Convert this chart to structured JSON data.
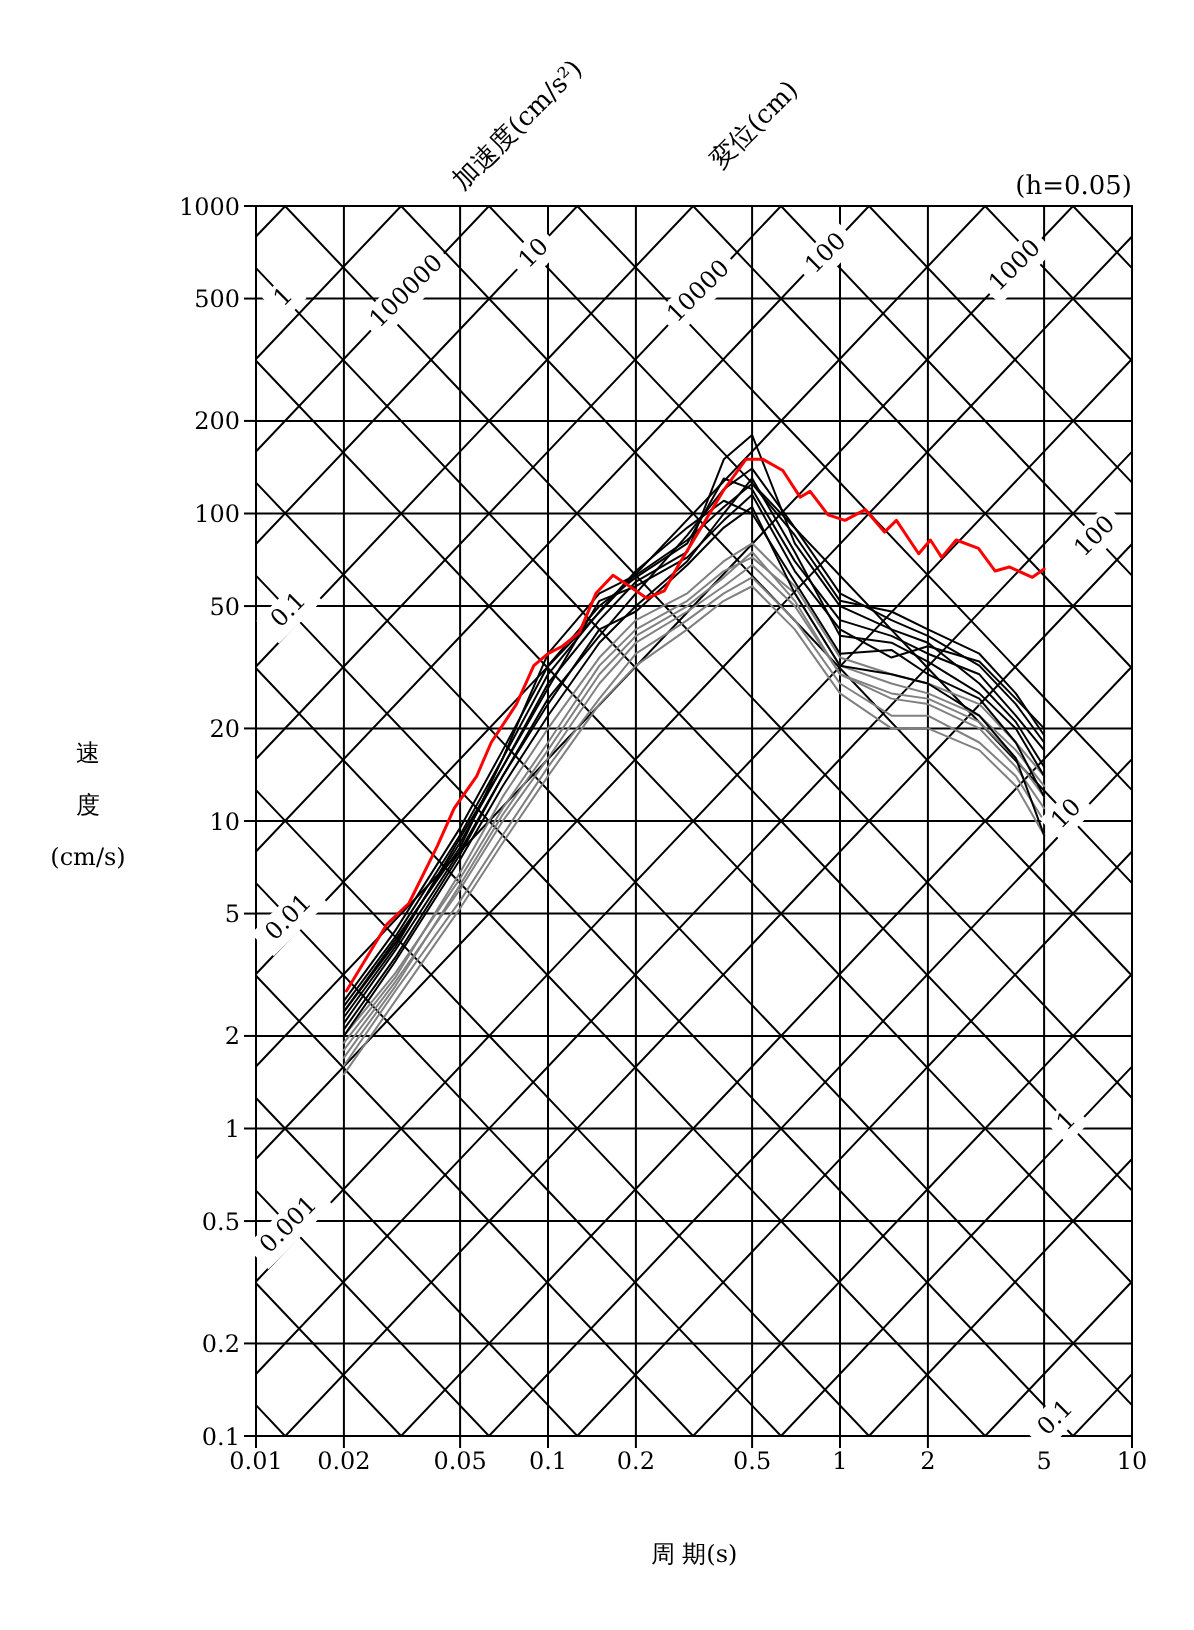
{
  "chart_data": {
    "type": "line",
    "subtitle": "(h=0.05)",
    "xlabel": "周 期(s)",
    "ylabel": "速度(cm/s)",
    "log": "xy",
    "grid": true,
    "marker": "none",
    "line_style": "solid",
    "xlim": [
      0.01,
      10
    ],
    "ylim": [
      0.1,
      1000
    ],
    "xticks": [
      0.01,
      0.02,
      0.05,
      0.1,
      0.2,
      0.5,
      1,
      2,
      5,
      10
    ],
    "yticks": [
      0.1,
      0.2,
      0.5,
      1,
      2,
      5,
      10,
      20,
      50,
      100,
      200,
      500,
      1000
    ],
    "annotations": [
      "加速度(cm/s²)",
      "変位(cm)",
      {
        "text": "1",
        "x": 0.0125,
        "y": 503
      },
      {
        "text": "100000",
        "x": 0.033,
        "y": 525
      },
      {
        "text": "10",
        "x": 0.09,
        "y": 698
      },
      {
        "text": "10000",
        "x": 0.33,
        "y": 525
      },
      {
        "text": "100",
        "x": 0.9,
        "y": 698
      },
      {
        "text": "1000",
        "x": 4,
        "y": 637
      },
      {
        "text": "100",
        "x": 7.5,
        "y": 83.8
      },
      {
        "text": "10",
        "x": 6,
        "y": 10.5
      },
      {
        "text": "1",
        "x": 6,
        "y": 1.05
      },
      {
        "text": "0.1",
        "x": 5.5,
        "y": 0.114
      },
      {
        "text": "0.1",
        "x": 0.013,
        "y": 48.3
      },
      {
        "text": "0.01",
        "x": 0.013,
        "y": 4.83
      },
      {
        "text": "0.001",
        "x": 0.013,
        "y": 0.483
      }
    ],
    "series": [
      {
        "type": "line",
        "color": "#000000",
        "x": [
          6.283,
          10
        ],
        "values": [
          0.1,
          0.159
        ]
      },
      {
        "type": "line",
        "color": "#000000",
        "x": [
          3.142,
          10
        ],
        "values": [
          0.1,
          0.318
        ]
      },
      {
        "type": "line",
        "color": "#000000",
        "x": [
          1.257,
          10
        ],
        "values": [
          0.1,
          0.796
        ]
      },
      {
        "type": "line",
        "color": "#000000",
        "x": [
          0.628,
          10
        ],
        "values": [
          0.1,
          1.59
        ]
      },
      {
        "type": "line",
        "color": "#000000",
        "x": [
          0.314,
          10
        ],
        "values": [
          0.1,
          3.18
        ]
      },
      {
        "type": "line",
        "color": "#000000",
        "x": [
          0.126,
          10
        ],
        "values": [
          0.1,
          7.96
        ]
      },
      {
        "type": "line",
        "color": "#000000",
        "x": [
          0.0628,
          10
        ],
        "values": [
          0.1,
          15.9
        ]
      },
      {
        "type": "line",
        "color": "#000000",
        "x": [
          0.0314,
          10
        ],
        "values": [
          0.1,
          31.8
        ]
      },
      {
        "type": "line",
        "color": "#000000",
        "x": [
          0.0126,
          10
        ],
        "values": [
          0.1,
          79.6
        ]
      },
      {
        "type": "line",
        "color": "#000000",
        "x": [
          0.01,
          10
        ],
        "values": [
          0.159,
          159
        ]
      },
      {
        "type": "line",
        "color": "#000000",
        "x": [
          0.01,
          10
        ],
        "values": [
          0.318,
          318
        ]
      },
      {
        "type": "line",
        "color": "#000000",
        "x": [
          0.01,
          10
        ],
        "values": [
          0.796,
          796
        ]
      },
      {
        "type": "line",
        "color": "#000000",
        "x": [
          0.01,
          6.283
        ],
        "values": [
          1.59,
          1000
        ]
      },
      {
        "type": "line",
        "color": "#000000",
        "x": [
          0.01,
          3.142
        ],
        "values": [
          3.18,
          1000
        ]
      },
      {
        "type": "line",
        "color": "#000000",
        "x": [
          0.01,
          1.257
        ],
        "values": [
          7.96,
          1000
        ]
      },
      {
        "type": "line",
        "color": "#000000",
        "x": [
          0.01,
          0.628
        ],
        "values": [
          15.9,
          1000
        ]
      },
      {
        "type": "line",
        "color": "#000000",
        "x": [
          0.01,
          0.314
        ],
        "values": [
          31.8,
          1000
        ]
      },
      {
        "type": "line",
        "color": "#000000",
        "x": [
          0.01,
          0.126
        ],
        "values": [
          79.6,
          1000
        ]
      },
      {
        "type": "line",
        "color": "#000000",
        "x": [
          0.01,
          0.0628
        ],
        "values": [
          159,
          1000
        ]
      },
      {
        "type": "line",
        "color": "#000000",
        "x": [
          0.01,
          0.0314
        ],
        "values": [
          318,
          1000
        ]
      },
      {
        "type": "line",
        "color": "#000000",
        "x": [
          0.01,
          0.0126
        ],
        "values": [
          796,
          1000
        ]
      },
      {
        "type": "line",
        "color": "#000000",
        "x": [
          0.01,
          0.01257
        ],
        "values": [
          0.126,
          0.1
        ]
      },
      {
        "type": "line",
        "color": "#000000",
        "x": [
          0.01,
          0.0314
        ],
        "values": [
          0.314,
          0.1
        ]
      },
      {
        "type": "line",
        "color": "#000000",
        "x": [
          0.01,
          0.0628
        ],
        "values": [
          0.628,
          0.1
        ]
      },
      {
        "type": "line",
        "color": "#000000",
        "x": [
          0.01,
          0.126
        ],
        "values": [
          1.257,
          0.1
        ]
      },
      {
        "type": "line",
        "color": "#000000",
        "x": [
          0.01,
          0.314
        ],
        "values": [
          3.14,
          0.1
        ]
      },
      {
        "type": "line",
        "color": "#000000",
        "x": [
          0.01,
          0.628
        ],
        "values": [
          6.28,
          0.1
        ]
      },
      {
        "type": "line",
        "color": "#000000",
        "x": [
          0.01,
          1.257
        ],
        "values": [
          12.6,
          0.1
        ]
      },
      {
        "type": "line",
        "color": "#000000",
        "x": [
          0.01,
          3.14
        ],
        "values": [
          31.4,
          0.1
        ]
      },
      {
        "type": "line",
        "color": "#000000",
        "x": [
          0.01,
          6.28
        ],
        "values": [
          62.8,
          0.1
        ]
      },
      {
        "type": "line",
        "color": "#000000",
        "x": [
          0.01,
          10
        ],
        "values": [
          126,
          0.126
        ]
      },
      {
        "type": "line",
        "color": "#000000",
        "x": [
          0.01,
          10
        ],
        "values": [
          314,
          0.314
        ]
      },
      {
        "type": "line",
        "color": "#000000",
        "x": [
          0.01,
          10
        ],
        "values": [
          628,
          0.628
        ]
      },
      {
        "type": "line",
        "color": "#000000",
        "x": [
          0.01257,
          10
        ],
        "values": [
          1000,
          1.257
        ]
      },
      {
        "type": "line",
        "color": "#000000",
        "x": [
          0.0314,
          10
        ],
        "values": [
          1000,
          3.14
        ]
      },
      {
        "type": "line",
        "color": "#000000",
        "x": [
          0.0628,
          10
        ],
        "values": [
          1000,
          6.28
        ]
      },
      {
        "type": "line",
        "color": "#000000",
        "x": [
          0.126,
          10
        ],
        "values": [
          1000,
          12.6
        ]
      },
      {
        "type": "line",
        "color": "#000000",
        "x": [
          0.314,
          10
        ],
        "values": [
          1000,
          31.4
        ]
      },
      {
        "type": "line",
        "color": "#000000",
        "x": [
          0.628,
          10
        ],
        "values": [
          1000,
          62.8
        ]
      },
      {
        "type": "line",
        "color": "#000000",
        "x": [
          1.257,
          10
        ],
        "values": [
          1000,
          126
        ]
      },
      {
        "type": "line",
        "color": "#000000",
        "x": [
          3.14,
          10
        ],
        "values": [
          1000,
          314
        ]
      },
      {
        "type": "line",
        "color": "#000000",
        "x": [
          6.28,
          10
        ],
        "values": [
          1000,
          628
        ]
      },
      {
        "type": "line",
        "color": "#808080",
        "x": [
          0.02,
          0.03,
          0.05,
          0.07,
          0.1,
          0.15,
          0.2,
          0.3,
          0.4,
          0.5,
          0.7,
          1,
          1.5,
          2,
          3,
          4,
          5
        ],
        "values": [
          2.0,
          3.2,
          6.5,
          11,
          18,
          32,
          42,
          52,
          65,
          72,
          55,
          32,
          28,
          26,
          22,
          17,
          13
        ]
      },
      {
        "type": "line",
        "color": "#808080",
        "x": [
          0.02,
          0.03,
          0.05,
          0.07,
          0.1,
          0.15,
          0.2,
          0.3,
          0.4,
          0.5,
          0.7,
          1,
          1.5,
          2,
          3,
          4,
          5
        ],
        "values": [
          1.8,
          3.0,
          6,
          10,
          16,
          28,
          38,
          48,
          58,
          68,
          50,
          30,
          25,
          24,
          20,
          15,
          11
        ]
      },
      {
        "type": "line",
        "color": "#808080",
        "x": [
          0.02,
          0.03,
          0.05,
          0.07,
          0.1,
          0.15,
          0.2,
          0.3,
          0.4,
          0.5,
          0.7,
          1,
          1.5,
          2,
          3,
          4,
          5
        ],
        "values": [
          1.6,
          2.8,
          5.5,
          9,
          15,
          25,
          35,
          45,
          55,
          62,
          45,
          28,
          22,
          22,
          18,
          14,
          10
        ]
      },
      {
        "type": "line",
        "color": "#808080",
        "x": [
          0.02,
          0.03,
          0.05,
          0.07,
          0.1,
          0.15,
          0.2,
          0.3,
          0.4,
          0.5,
          0.7,
          1,
          1.5,
          2,
          3,
          4,
          5
        ],
        "values": [
          1.9,
          3.1,
          6.8,
          12,
          20,
          34,
          45,
          55,
          70,
          80,
          58,
          34,
          30,
          28,
          24,
          18,
          14
        ]
      },
      {
        "type": "line",
        "color": "#808080",
        "x": [
          0.02,
          0.03,
          0.05,
          0.07,
          0.1,
          0.15,
          0.2,
          0.3,
          0.4,
          0.5,
          0.7,
          1,
          1.5,
          2,
          3,
          4,
          5
        ],
        "values": [
          1.5,
          2.6,
          5.2,
          8.5,
          14,
          24,
          32,
          42,
          52,
          58,
          42,
          26,
          20,
          20,
          17,
          13,
          9
        ]
      },
      {
        "type": "line",
        "color": "#808080",
        "x": [
          0.02,
          0.03,
          0.05,
          0.07,
          0.1,
          0.15,
          0.2,
          0.3,
          0.4,
          0.5,
          0.7,
          1,
          1.5,
          2,
          3,
          4,
          5
        ],
        "values": [
          1.7,
          2.9,
          6.2,
          10.5,
          17,
          30,
          40,
          50,
          62,
          75,
          52,
          30,
          26,
          25,
          21,
          16,
          12
        ]
      },
      {
        "type": "line",
        "color": "#000000",
        "x": [
          0.02,
          0.03,
          0.05,
          0.07,
          0.1,
          0.15,
          0.2,
          0.3,
          0.4,
          0.5,
          0.7,
          1,
          1.5,
          2,
          3,
          4,
          5
        ],
        "values": [
          2.6,
          4.4,
          9.5,
          17,
          32,
          50,
          62,
          80,
          130,
          120,
          70,
          45,
          40,
          35,
          30,
          22,
          17
        ]
      },
      {
        "type": "line",
        "color": "#000000",
        "x": [
          0.02,
          0.03,
          0.05,
          0.07,
          0.1,
          0.15,
          0.2,
          0.3,
          0.4,
          0.5,
          0.7,
          1,
          1.5,
          2,
          3,
          4,
          5
        ],
        "values": [
          2.4,
          4.0,
          8.5,
          15,
          28,
          45,
          60,
          75,
          150,
          180,
          80,
          50,
          42,
          38,
          28,
          21,
          15
        ]
      },
      {
        "type": "line",
        "color": "#000000",
        "x": [
          0.02,
          0.03,
          0.05,
          0.07,
          0.1,
          0.15,
          0.2,
          0.3,
          0.4,
          0.5,
          0.7,
          1,
          1.5,
          2,
          3,
          4,
          5
        ],
        "values": [
          2.2,
          3.8,
          8,
          14,
          25,
          40,
          55,
          85,
          120,
          140,
          90,
          55,
          45,
          40,
          32,
          24,
          18
        ]
      },
      {
        "type": "line",
        "color": "#000000",
        "x": [
          0.02,
          0.03,
          0.05,
          0.07,
          0.1,
          0.15,
          0.2,
          0.3,
          0.4,
          0.5,
          0.7,
          1,
          1.5,
          2,
          3,
          4,
          5
        ],
        "values": [
          2.0,
          3.5,
          7.5,
          13,
          22,
          38,
          50,
          70,
          100,
          130,
          75,
          40,
          38,
          33,
          26,
          20,
          14
        ]
      },
      {
        "type": "line",
        "color": "#000000",
        "x": [
          0.02,
          0.03,
          0.05,
          0.07,
          0.1,
          0.15,
          0.2,
          0.3,
          0.4,
          0.5,
          0.7,
          1,
          1.5,
          2,
          3,
          4,
          5
        ],
        "values": [
          2.5,
          4.2,
          9,
          16,
          30,
          48,
          65,
          90,
          110,
          100,
          60,
          35,
          36,
          30,
          25,
          18,
          12
        ]
      },
      {
        "type": "line",
        "color": "#000000",
        "x": [
          0.02,
          0.03,
          0.05,
          0.07,
          0.1,
          0.15,
          0.2,
          0.3,
          0.4,
          0.5,
          0.7,
          1,
          1.5,
          2,
          3,
          4,
          5
        ],
        "values": [
          2.3,
          3.9,
          8.8,
          15,
          27,
          52,
          58,
          72,
          95,
          115,
          65,
          42,
          34,
          37,
          33,
          25,
          20
        ]
      },
      {
        "type": "line",
        "color": "#000000",
        "x": [
          0.02,
          0.03,
          0.05,
          0.07,
          0.1,
          0.15,
          0.2,
          0.3,
          0.4,
          0.5,
          0.7,
          1,
          1.5,
          2,
          3,
          4,
          5
        ],
        "values": [
          2.1,
          3.6,
          7.8,
          14,
          24,
          42,
          48,
          68,
          90,
          105,
          55,
          32,
          30,
          28,
          22,
          16,
          9
        ]
      },
      {
        "type": "line",
        "color": "#000000",
        "x": [
          0.02,
          0.03,
          0.05,
          0.07,
          0.1,
          0.15,
          0.2,
          0.3,
          0.4,
          0.5,
          0.7,
          1,
          1.5,
          2,
          3,
          4,
          5
        ],
        "values": [
          2.4,
          4.1,
          8.2,
          16,
          35,
          55,
          63,
          82,
          105,
          125,
          85,
          52,
          48,
          42,
          35,
          26,
          19
        ]
      },
      {
        "type": "line",
        "color": "#ff0000",
        "x": [
          0.0204,
          0.028,
          0.0334,
          0.0418,
          0.0477,
          0.057,
          0.0639,
          0.078,
          0.0894,
          0.1,
          0.112,
          0.128,
          0.146,
          0.167,
          0.19,
          0.218,
          0.25,
          0.28,
          0.33,
          0.397,
          0.476,
          0.545,
          0.637,
          0.73,
          0.79,
          0.91,
          1.04,
          1.22,
          1.42,
          1.56,
          1.86,
          2.04,
          2.23,
          2.5,
          2.98,
          3.4,
          3.8,
          4.56,
          5
        ],
        "values": [
          2.8,
          4.6,
          5.4,
          8.3,
          11,
          14,
          18,
          24,
          32,
          35,
          37,
          41,
          55,
          63,
          58,
          53,
          56,
          68,
          88,
          118,
          150,
          150,
          138,
          113,
          118,
          99,
          95,
          103,
          87,
          95,
          74,
          82,
          72,
          82,
          77,
          65,
          67,
          62,
          66
        ]
      }
    ]
  }
}
